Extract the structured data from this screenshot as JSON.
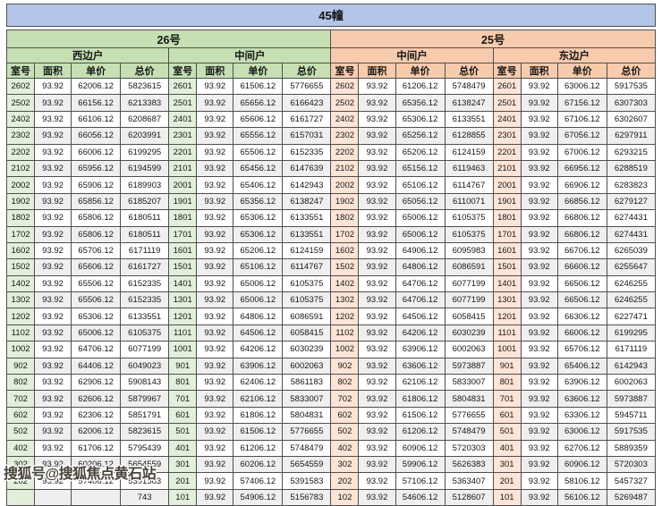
{
  "page": {
    "title": "45幢"
  },
  "watermark": {
    "text": "搜狐号@搜狐焦点黄石站"
  },
  "colors": {
    "title_bg": "#b4c6e7",
    "green_header": "#c6e0b4",
    "green_room": "#e2efda",
    "orange_header": "#f8cbad",
    "orange_room": "#fce4d6",
    "row_alt": "#efefef",
    "border": "#4f4f4f",
    "watermark_color": "#474339"
  },
  "table": {
    "buildings": [
      {
        "label": "26号",
        "theme": "green",
        "units": [
          {
            "label": "西边户"
          },
          {
            "label": "中间户"
          }
        ]
      },
      {
        "label": "25号",
        "theme": "orange",
        "units": [
          {
            "label": "中间户"
          },
          {
            "label": "东边户"
          }
        ]
      }
    ],
    "column_headers": [
      "室号",
      "面积",
      "单价",
      "总价"
    ],
    "rows": [
      [
        "2602",
        "93.92",
        "62006.12",
        "5823615",
        "2601",
        "93.92",
        "61506.12",
        "5776655",
        "2602",
        "93.92",
        "61206.12",
        "5748479",
        "2601",
        "93.92",
        "63006.12",
        "5917535"
      ],
      [
        "2502",
        "93.92",
        "66156.12",
        "6213383",
        "2501",
        "93.92",
        "65656.12",
        "6166423",
        "2502",
        "93.92",
        "65356.12",
        "6138247",
        "2501",
        "93.92",
        "67156.12",
        "6307303"
      ],
      [
        "2402",
        "93.92",
        "66106.12",
        "6208687",
        "2401",
        "93.92",
        "65606.12",
        "6161727",
        "2402",
        "93.92",
        "65306.12",
        "6133551",
        "2401",
        "93.92",
        "67106.12",
        "6302607"
      ],
      [
        "2302",
        "93.92",
        "66056.12",
        "6203991",
        "2301",
        "93.92",
        "65556.12",
        "6157031",
        "2302",
        "93.92",
        "65256.12",
        "6128855",
        "2301",
        "93.92",
        "67056.12",
        "6297911"
      ],
      [
        "2202",
        "93.92",
        "66006.12",
        "6199295",
        "2201",
        "93.92",
        "65506.12",
        "6152335",
        "2202",
        "93.92",
        "65206.12",
        "6124159",
        "2201",
        "93.92",
        "67006.12",
        "6293215"
      ],
      [
        "2102",
        "93.92",
        "65956.12",
        "6194599",
        "2101",
        "93.92",
        "65456.12",
        "6147639",
        "2102",
        "93.92",
        "65156.12",
        "6119463",
        "2101",
        "93.92",
        "66956.12",
        "6288519"
      ],
      [
        "2002",
        "93.92",
        "65906.12",
        "6189903",
        "2001",
        "93.92",
        "65406.12",
        "6142943",
        "2002",
        "93.92",
        "65106.12",
        "6114767",
        "2001",
        "93.92",
        "66906.12",
        "6283823"
      ],
      [
        "1902",
        "93.92",
        "65856.12",
        "6185207",
        "1901",
        "93.92",
        "65356.12",
        "6138247",
        "1902",
        "93.92",
        "65056.12",
        "6110071",
        "1901",
        "93.92",
        "66856.12",
        "6279127"
      ],
      [
        "1802",
        "93.92",
        "65806.12",
        "6180511",
        "1801",
        "93.92",
        "65306.12",
        "6133551",
        "1802",
        "93.92",
        "65006.12",
        "6105375",
        "1801",
        "93.92",
        "66806.12",
        "6274431"
      ],
      [
        "1702",
        "93.92",
        "65806.12",
        "6180511",
        "1701",
        "93.92",
        "65306.12",
        "6133551",
        "1702",
        "93.92",
        "65006.12",
        "6105375",
        "1701",
        "93.92",
        "66806.12",
        "6274431"
      ],
      [
        "1602",
        "93.92",
        "65706.12",
        "6171119",
        "1601",
        "93.92",
        "65206.12",
        "6124159",
        "1602",
        "93.92",
        "64906.12",
        "6095983",
        "1601",
        "93.92",
        "66706.12",
        "6265039"
      ],
      [
        "1502",
        "93.92",
        "65606.12",
        "6161727",
        "1501",
        "93.92",
        "65106.12",
        "6114767",
        "1502",
        "93.92",
        "64806.12",
        "6086591",
        "1501",
        "93.92",
        "66606.12",
        "6255647"
      ],
      [
        "1402",
        "93.92",
        "65506.12",
        "6152335",
        "1401",
        "93.92",
        "65006.12",
        "6105375",
        "1402",
        "93.92",
        "64706.12",
        "6077199",
        "1401",
        "93.92",
        "66506.12",
        "6246255"
      ],
      [
        "1302",
        "93.92",
        "65506.12",
        "6152335",
        "1301",
        "93.92",
        "65006.12",
        "6105375",
        "1302",
        "93.92",
        "64706.12",
        "6077199",
        "1301",
        "93.92",
        "66506.12",
        "6246255"
      ],
      [
        "1202",
        "93.92",
        "65306.12",
        "6133551",
        "1201",
        "93.92",
        "64806.12",
        "6086591",
        "1202",
        "93.92",
        "64506.12",
        "6058415",
        "1201",
        "93.92",
        "66306.12",
        "6227471"
      ],
      [
        "1102",
        "93.92",
        "65006.12",
        "6105375",
        "1101",
        "93.92",
        "64506.12",
        "6058415",
        "1102",
        "93.92",
        "64206.12",
        "6030239",
        "1101",
        "93.92",
        "66006.12",
        "6199295"
      ],
      [
        "1002",
        "93.92",
        "64706.12",
        "6077199",
        "1001",
        "93.92",
        "64206.12",
        "6030239",
        "1002",
        "93.92",
        "63906.12",
        "6002063",
        "1001",
        "93.92",
        "65706.12",
        "6171119"
      ],
      [
        "902",
        "93.92",
        "64406.12",
        "6049023",
        "901",
        "93.92",
        "63906.12",
        "6002063",
        "902",
        "93.92",
        "63606.12",
        "5973887",
        "901",
        "93.92",
        "65406.12",
        "6142943"
      ],
      [
        "802",
        "93.92",
        "62906.12",
        "5908143",
        "801",
        "93.92",
        "62406.12",
        "5861183",
        "802",
        "93.92",
        "62106.12",
        "5833007",
        "801",
        "93.92",
        "63906.12",
        "6002063"
      ],
      [
        "702",
        "93.92",
        "62606.12",
        "5879967",
        "701",
        "93.92",
        "62106.12",
        "5833007",
        "702",
        "93.92",
        "61806.12",
        "5804831",
        "701",
        "93.92",
        "63606.12",
        "5973887"
      ],
      [
        "602",
        "93.92",
        "62306.12",
        "5851791",
        "601",
        "93.92",
        "61806.12",
        "5804831",
        "602",
        "93.92",
        "61506.12",
        "5776655",
        "601",
        "93.92",
        "63306.12",
        "5945711"
      ],
      [
        "502",
        "93.92",
        "62006.12",
        "5823615",
        "501",
        "93.92",
        "61506.12",
        "5776655",
        "502",
        "93.92",
        "61206.12",
        "5748479",
        "501",
        "93.92",
        "63006.12",
        "5917535"
      ],
      [
        "402",
        "93.92",
        "61706.12",
        "5795439",
        "401",
        "93.92",
        "61206.12",
        "5748479",
        "402",
        "93.92",
        "60906.12",
        "5720303",
        "401",
        "93.92",
        "62706.12",
        "5889359"
      ],
      [
        "302",
        "93.92",
        "60206.12",
        "5654559",
        "301",
        "93.92",
        "60206.12",
        "5654559",
        "302",
        "93.92",
        "59906.12",
        "5626383",
        "301",
        "93.92",
        "60906.12",
        "5720303"
      ],
      [
        "202",
        "93.92",
        "57406.12",
        "5391583",
        "201",
        "93.92",
        "57406.12",
        "5391583",
        "202",
        "93.92",
        "57106.12",
        "5363407",
        "201",
        "93.92",
        "58106.12",
        "5457327"
      ],
      [
        "",
        "",
        "",
        "743",
        "101",
        "93.92",
        "54906.12",
        "5156783",
        "102",
        "93.92",
        "54606.12",
        "5128607",
        "101",
        "93.92",
        "56106.12",
        "5269487"
      ]
    ]
  }
}
